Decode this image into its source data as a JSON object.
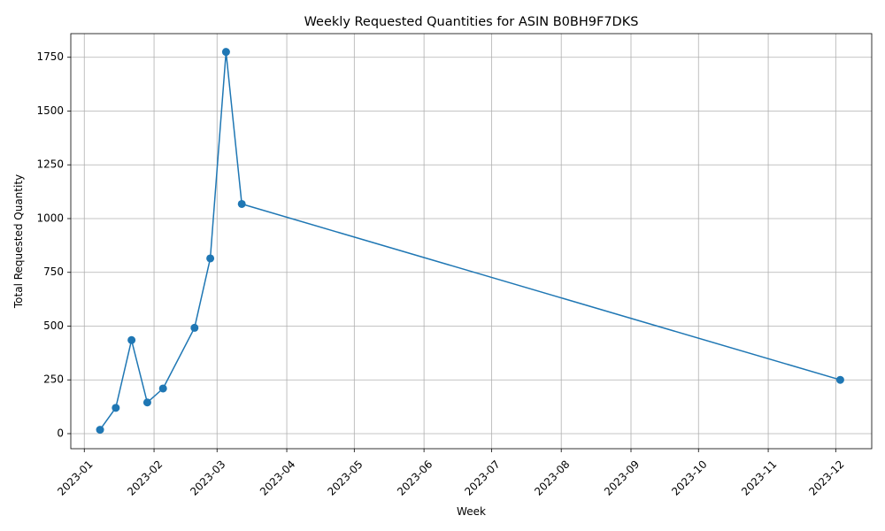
{
  "chart_data": {
    "type": "line",
    "title": "Weekly Requested Quantities for ASIN B0BH9F7DKS",
    "xlabel": "Week",
    "ylabel": "Total Requested Quantity",
    "x_type": "date",
    "x_tick_rotation_deg": 45,
    "xlim": [
      "2022-12-26",
      "2023-12-17"
    ],
    "ylim": [
      -70,
      1860
    ],
    "grid": true,
    "legend": "none",
    "x_ticks": [
      "2023-01-01",
      "2023-02-01",
      "2023-03-01",
      "2023-04-01",
      "2023-05-01",
      "2023-06-01",
      "2023-07-01",
      "2023-08-01",
      "2023-09-01",
      "2023-10-01",
      "2023-11-01",
      "2023-12-01"
    ],
    "x_tick_labels": [
      "2023-01",
      "2023-02",
      "2023-03",
      "2023-04",
      "2023-05",
      "2023-06",
      "2023-07",
      "2023-08",
      "2023-09",
      "2023-10",
      "2023-11",
      "2023-12"
    ],
    "y_ticks": [
      0,
      250,
      500,
      750,
      1000,
      1250,
      1500,
      1750
    ],
    "y_tick_labels": [
      "0",
      "250",
      "500",
      "750",
      "1000",
      "1250",
      "1500",
      "1750"
    ],
    "series": [
      {
        "color": "#1f77b4",
        "marker": "circle",
        "x": [
          "2023-01-08",
          "2023-01-15",
          "2023-01-22",
          "2023-01-29",
          "2023-02-05",
          "2023-02-19",
          "2023-02-26",
          "2023-03-05",
          "2023-03-12",
          "2023-12-03"
        ],
        "values": [
          18,
          120,
          435,
          145,
          210,
          492,
          815,
          1775,
          1068,
          250
        ]
      }
    ]
  }
}
